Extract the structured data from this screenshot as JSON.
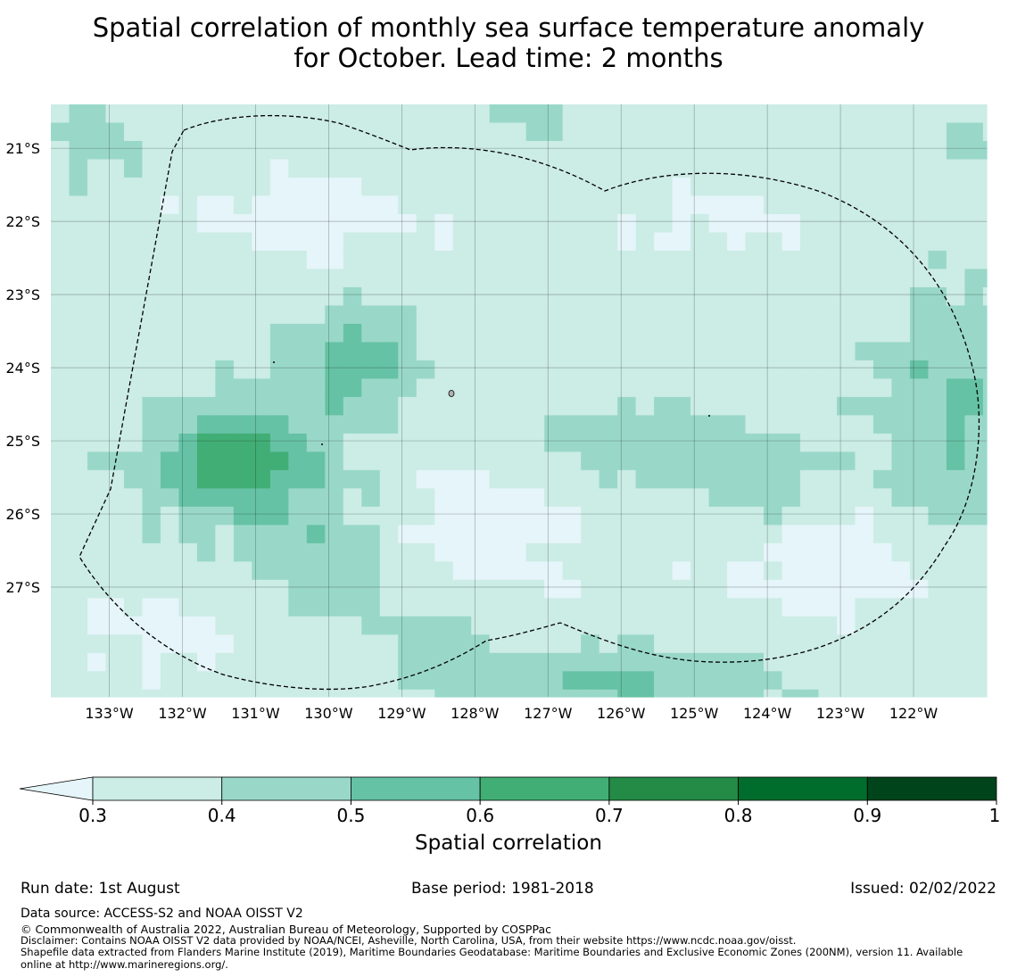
{
  "title": {
    "line1": "Spatial correlation of monthly sea surface temperature anomaly",
    "line2": "for October. Lead time: 2 months"
  },
  "map": {
    "lat_labels": [
      "21°S",
      "22°S",
      "23°S",
      "24°S",
      "25°S",
      "26°S",
      "27°S"
    ],
    "lon_labels": [
      "133°W",
      "132°W",
      "131°W",
      "130°W",
      "129°W",
      "128°W",
      "127°W",
      "126°W",
      "125°W",
      "124°W",
      "123°W",
      "122°W"
    ],
    "lon_range": [
      -133.8,
      -121.0
    ],
    "lat_range": [
      -28.5,
      -20.4
    ],
    "cell_size_deg": 0.25,
    "boundary": "Exclusive Economic Zone (dashed)"
  },
  "colorbar": {
    "title": "Spatial correlation",
    "ticks": [
      "0.3",
      "0.4",
      "0.5",
      "0.6",
      "0.7",
      "0.8",
      "0.9",
      "1"
    ],
    "colors": {
      "below": "#e5f5f9",
      "c1": "#ccece6",
      "c2": "#99d8c9",
      "c3": "#66c2a4",
      "c4": "#41ae76",
      "c5": "#238b45",
      "c6": "#006d2c",
      "c7": "#00441b"
    }
  },
  "meta": {
    "run_date": "Run date: 1st August",
    "base_period": "Base period: 1981-2018",
    "issued": "Issued: 02/02/2022"
  },
  "footer": {
    "data_source": "Data source: ACCESS-S2 and NOAA OISST V2",
    "copyright": "© Commonwealth of Australia 2022, Australian Bureau of Meteorology, Supported by COSPPac",
    "disclaimer": "Disclaimer: Contains NOAA OISST V2 data provided by NOAA/NCEI, Asheville, North Carolina, USA, from their website https://www.ncdc.noaa.gov/oisst.",
    "shapefile_1": "Shapefile data extracted from Flanders Marine Institute (2019), Maritime Boundaries Geodatabase: Maritime Boundaries and Exclusive Economic Zones (200NM), version 11. Available",
    "shapefile_2": "online at http://www.marineregions.org/."
  }
}
